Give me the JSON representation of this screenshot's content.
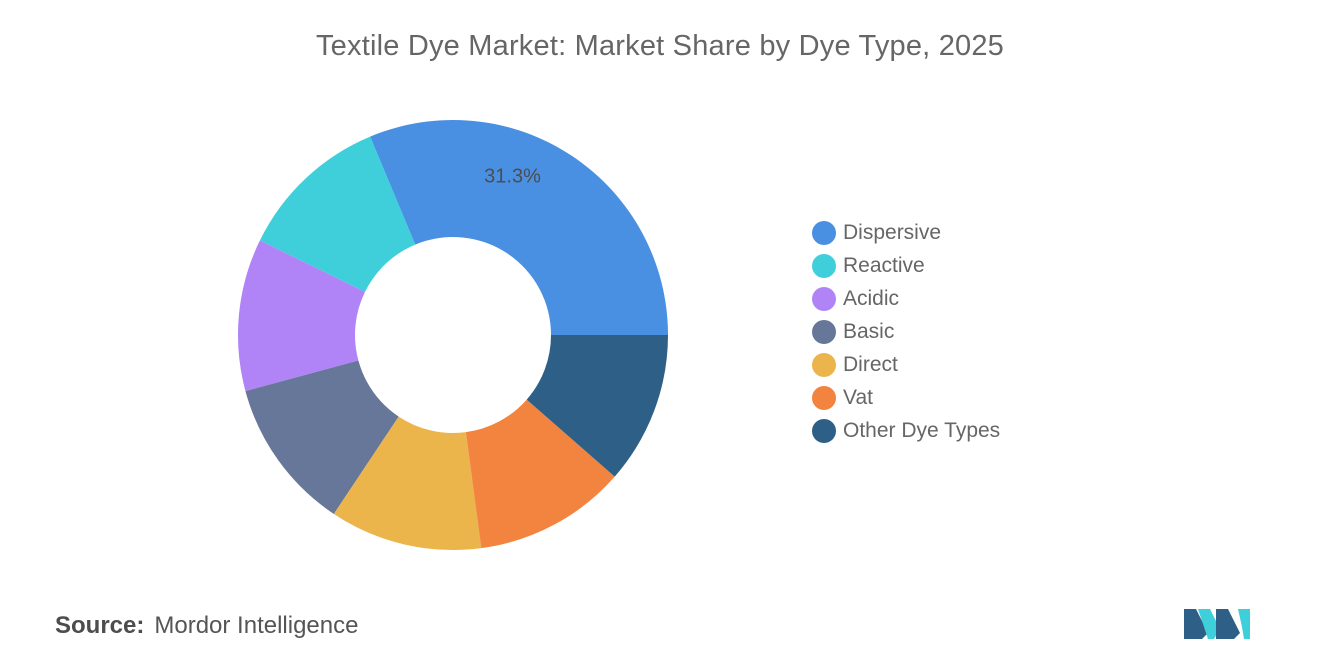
{
  "chart_data": {
    "type": "pie",
    "title": "Textile Dye Market: Market Share by Dye Type, 2025",
    "categories": [
      "Dispersive",
      "Reactive",
      "Acidic",
      "Basic",
      "Direct",
      "Vat",
      "Other Dye Types"
    ],
    "values": [
      31.3,
      11.45,
      11.45,
      11.45,
      11.45,
      11.45,
      11.45
    ],
    "colors": [
      "#4a90e2",
      "#3ecfdb",
      "#b084f7",
      "#667799",
      "#ebb54c",
      "#f2843f",
      "#2e5f86"
    ],
    "data_labels": [
      "31.3%",
      "",
      "",
      "",
      "",
      "",
      ""
    ],
    "donut": true,
    "legend_position": "right"
  },
  "source": {
    "label": "Source:",
    "text": "Mordor Intelligence"
  },
  "logo": {
    "icon": "mordor-intelligence-logo-icon",
    "colors": [
      "#2e5f86",
      "#3ecfdb"
    ]
  }
}
